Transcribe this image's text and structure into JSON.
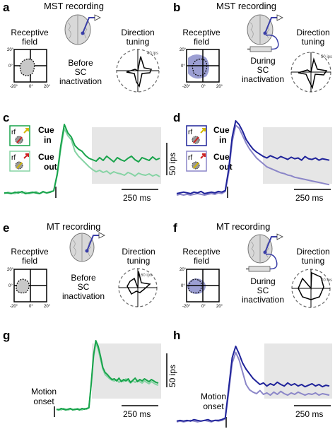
{
  "panels": {
    "a": {
      "letter": "a",
      "title": "MST recording",
      "rf_label": [
        "Receptive",
        "field"
      ],
      "condition": [
        "Before",
        "SC",
        "inactivation"
      ],
      "tuning_label": [
        "Direction",
        "tuning"
      ],
      "speed": "40 ips",
      "ticks": [
        "-20°",
        "0°",
        "20°"
      ],
      "yticks": [
        "20°",
        "0°"
      ]
    },
    "b": {
      "letter": "b",
      "title": "MST recording",
      "rf_label": [
        "Receptive",
        "field"
      ],
      "condition": [
        "During",
        "SC",
        "inactivation"
      ],
      "tuning_label": [
        "Direction",
        "tuning"
      ],
      "speed": "50 ips",
      "ticks": [
        "-20°",
        "0°",
        "20°"
      ],
      "yticks": [
        "20°",
        "0°"
      ]
    },
    "c": {
      "letter": "c",
      "cue_in": [
        "Cue",
        "in"
      ],
      "cue_out": [
        "Cue",
        "out"
      ],
      "rf": "rf",
      "scale_y": "50 ips",
      "scale_x": "250 ms"
    },
    "d": {
      "letter": "d",
      "cue_in": [
        "Cue",
        "in"
      ],
      "cue_out": [
        "Cue",
        "out"
      ],
      "rf": "rf",
      "scale_x": "250 ms"
    },
    "e": {
      "letter": "e",
      "title": "MT recording",
      "rf_label": [
        "Receptive",
        "field"
      ],
      "condition": [
        "Before",
        "SC",
        "inactivation"
      ],
      "tuning_label": [
        "Direction",
        "tuning"
      ],
      "speed": "60 ips",
      "ticks": [
        "-20°",
        "0°",
        "20°"
      ],
      "yticks": [
        "20°",
        "0°"
      ]
    },
    "f": {
      "letter": "f",
      "title": "MT recording",
      "rf_label": [
        "Receptive",
        "field"
      ],
      "condition": [
        "During",
        "SC",
        "inactivation"
      ],
      "tuning_label": [
        "Direction",
        "tuning"
      ],
      "speed": "40 ips",
      "ticks": [
        "-20°",
        "0°",
        "20°"
      ],
      "yticks": [
        "20°",
        "0°"
      ]
    },
    "g": {
      "letter": "g",
      "onset": [
        "Motion",
        "onset"
      ],
      "scale_y": "50 ips",
      "scale_x": "250 ms"
    },
    "h": {
      "letter": "h",
      "onset": [
        "Motion",
        "onset"
      ],
      "scale_x": "250 ms"
    }
  },
  "colors": {
    "green_dark": "#17a34a",
    "green_light": "#86d3a4",
    "blue_dark": "#1f239a",
    "blue_light": "#8b86c8",
    "rf_blue": "#7b7fc4",
    "shade": "#e6e6e6"
  },
  "traces": {
    "c": [
      {
        "name": "cue-in",
        "values": [
          3,
          3,
          2,
          4,
          3,
          5,
          2,
          3,
          4,
          3,
          2,
          5,
          3,
          4,
          6,
          30,
          70,
          100,
          88,
          82,
          70,
          65,
          62,
          56,
          52,
          50,
          48,
          53,
          49,
          55,
          51,
          47,
          53,
          50,
          48,
          52,
          55,
          50,
          47,
          53,
          51,
          49,
          54,
          50,
          52
        ]
      },
      {
        "name": "cue-out",
        "values": [
          2,
          4,
          3,
          2,
          5,
          3,
          4,
          2,
          3,
          5,
          2,
          4,
          3,
          5,
          6,
          28,
          65,
          94,
          84,
          78,
          62,
          55,
          50,
          45,
          40,
          36,
          33,
          35,
          32,
          34,
          30,
          33,
          31,
          30,
          28,
          32,
          30,
          27,
          31,
          29,
          28,
          30,
          27,
          29,
          26
        ]
      }
    ],
    "d": [
      {
        "name": "cue-in",
        "values": [
          2,
          3,
          4,
          3,
          2,
          4,
          3,
          5,
          2,
          3,
          4,
          3,
          5,
          4,
          6,
          35,
          78,
          100,
          95,
          86,
          75,
          68,
          62,
          58,
          55,
          52,
          50,
          53,
          51,
          49,
          52,
          50,
          48,
          51,
          49,
          50,
          47,
          52,
          49,
          48,
          50,
          47,
          49,
          48,
          47
        ]
      },
      {
        "name": "cue-out",
        "values": [
          0,
          1,
          0,
          1,
          0,
          1,
          2,
          1,
          0,
          1,
          2,
          1,
          3,
          2,
          5,
          30,
          72,
          94,
          90,
          80,
          70,
          62,
          56,
          50,
          46,
          42,
          38,
          36,
          34,
          32,
          30,
          29,
          27,
          26,
          24,
          23,
          22,
          21,
          20,
          19,
          18,
          17,
          16,
          15,
          14
        ]
      }
    ],
    "g": [
      {
        "name": "cue-in",
        "values": [
          3,
          2,
          4,
          3,
          2,
          3,
          4,
          2,
          3,
          3,
          2,
          4,
          3,
          4,
          5,
          40,
          80,
          100,
          92,
          78,
          62,
          55,
          52,
          48,
          45,
          46,
          43,
          47,
          42,
          45,
          43,
          46,
          41,
          44,
          47,
          42,
          45,
          43,
          46,
          44,
          42,
          45,
          43,
          41,
          40
        ]
      },
      {
        "name": "cue-out",
        "values": [
          2,
          3,
          2,
          4,
          3,
          2,
          3,
          3,
          2,
          4,
          3,
          2,
          4,
          3,
          5,
          38,
          77,
          97,
          88,
          74,
          60,
          52,
          49,
          46,
          44,
          43,
          45,
          41,
          44,
          42,
          46,
          43,
          40,
          43,
          41,
          44,
          42,
          40,
          43,
          41,
          39,
          42,
          40,
          38,
          37
        ]
      }
    ],
    "h": [
      {
        "name": "cue-in",
        "values": [
          2,
          3,
          2,
          3,
          2,
          4,
          3,
          2,
          3,
          4,
          2,
          3,
          3,
          4,
          6,
          45,
          85,
          100,
          90,
          78,
          70,
          64,
          58,
          54,
          50,
          52,
          48,
          51,
          49,
          53,
          50,
          48,
          52,
          49,
          51,
          48,
          50,
          47,
          49,
          51,
          48,
          50,
          47,
          49,
          48
        ]
      },
      {
        "name": "cue-out",
        "values": [
          1,
          2,
          1,
          2,
          3,
          2,
          1,
          2,
          3,
          2,
          1,
          3,
          2,
          3,
          5,
          40,
          78,
          92,
          82,
          66,
          50,
          43,
          40,
          38,
          42,
          37,
          39,
          36,
          40,
          37,
          41,
          38,
          36,
          39,
          37,
          40,
          38,
          36,
          38,
          37,
          39,
          36,
          38,
          37,
          36
        ]
      }
    ]
  }
}
